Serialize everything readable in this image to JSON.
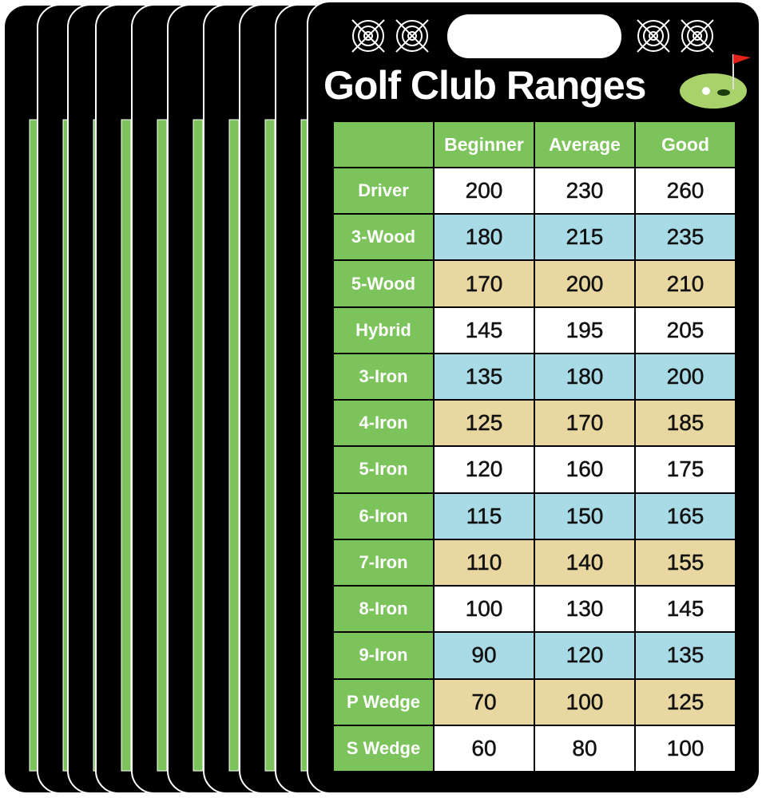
{
  "title": "Golf Club Ranges",
  "table": {
    "header": [
      "Beginner",
      "Average",
      "Good"
    ],
    "rows": [
      {
        "club": "Driver",
        "values": [
          200,
          230,
          260
        ]
      },
      {
        "club": "3-Wood",
        "values": [
          180,
          215,
          235
        ]
      },
      {
        "club": "5-Wood",
        "values": [
          170,
          200,
          210
        ]
      },
      {
        "club": "Hybrid",
        "values": [
          145,
          195,
          205
        ]
      },
      {
        "club": "3-Iron",
        "values": [
          135,
          180,
          200
        ]
      },
      {
        "club": "4-Iron",
        "values": [
          125,
          170,
          185
        ]
      },
      {
        "club": "5-Iron",
        "values": [
          120,
          160,
          175
        ]
      },
      {
        "club": "6-Iron",
        "values": [
          115,
          150,
          165
        ]
      },
      {
        "club": "7-Iron",
        "values": [
          110,
          140,
          155
        ]
      },
      {
        "club": "8-Iron",
        "values": [
          100,
          130,
          145
        ]
      },
      {
        "club": "9-Iron",
        "values": [
          90,
          120,
          135
        ]
      },
      {
        "club": "P Wedge",
        "values": [
          70,
          100,
          125
        ]
      },
      {
        "club": "S Wedge",
        "values": [
          60,
          80,
          100
        ]
      }
    ]
  }
}
